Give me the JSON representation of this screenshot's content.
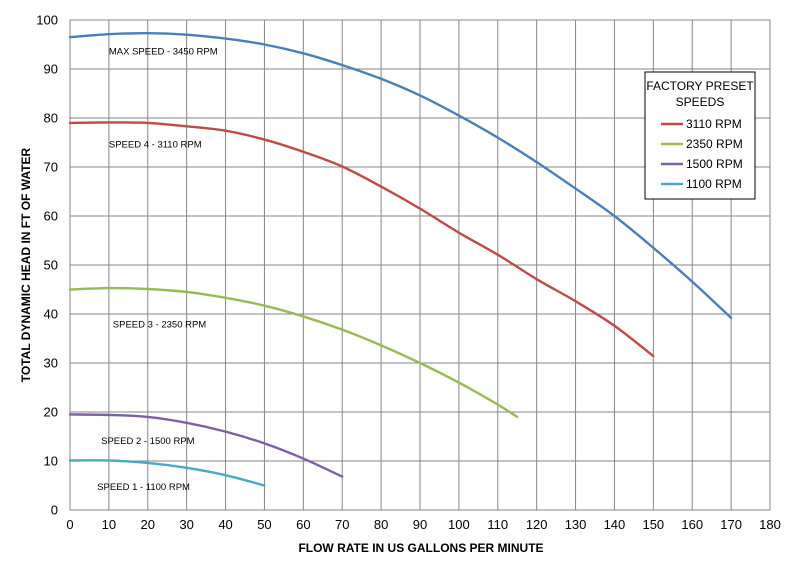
{
  "chart_data": {
    "type": "line",
    "xlabel": "FLOW RATE IN US GALLONS PER MINUTE",
    "ylabel": "TOTAL DYNAMIC HEAD IN FT OF WATER",
    "xlim": [
      0,
      180
    ],
    "ylim": [
      0,
      100
    ],
    "x_ticks": [
      0,
      10,
      20,
      30,
      40,
      50,
      60,
      70,
      80,
      90,
      100,
      110,
      120,
      130,
      140,
      150,
      160,
      170,
      180
    ],
    "y_ticks": [
      0,
      10,
      20,
      30,
      40,
      50,
      60,
      70,
      80,
      90,
      100
    ],
    "grid": true,
    "legend": {
      "title_lines": [
        "FACTORY PRESET",
        "SPEEDS"
      ],
      "placement": "top-right",
      "entries": [
        "3110 RPM",
        "2350 RPM",
        "1500 RPM",
        "1100 RPM"
      ]
    },
    "series": [
      {
        "label": "MAX SPEED - 3450 RPM",
        "color": "#4a7ebb",
        "points": [
          [
            0,
            96.5
          ],
          [
            10,
            97.1
          ],
          [
            20,
            97.3
          ],
          [
            30,
            97.0
          ],
          [
            40,
            96.2
          ],
          [
            50,
            95.0
          ],
          [
            60,
            93.2
          ],
          [
            70,
            90.8
          ],
          [
            80,
            88.0
          ],
          [
            90,
            84.6
          ],
          [
            100,
            80.5
          ],
          [
            110,
            76.0
          ],
          [
            120,
            71.0
          ],
          [
            130,
            65.6
          ],
          [
            140,
            60.0
          ],
          [
            150,
            53.5
          ],
          [
            160,
            46.6
          ],
          [
            170,
            39.2
          ]
        ]
      },
      {
        "label": "SPEED 4 - 3110 RPM",
        "legend": "3110 RPM",
        "color": "#be4b48",
        "points": [
          [
            0,
            79.0
          ],
          [
            10,
            79.1
          ],
          [
            20,
            79.0
          ],
          [
            30,
            78.3
          ],
          [
            40,
            77.4
          ],
          [
            50,
            75.6
          ],
          [
            60,
            73.1
          ],
          [
            70,
            70.1
          ],
          [
            80,
            66.0
          ],
          [
            90,
            61.5
          ],
          [
            100,
            56.6
          ],
          [
            110,
            52.1
          ],
          [
            120,
            47.1
          ],
          [
            130,
            42.6
          ],
          [
            140,
            37.6
          ],
          [
            150,
            31.4
          ]
        ]
      },
      {
        "label": "SPEED 3 - 2350 RPM",
        "legend": "2350 RPM",
        "color": "#98b954",
        "points": [
          [
            0,
            45.0
          ],
          [
            10,
            45.3
          ],
          [
            20,
            45.1
          ],
          [
            30,
            44.5
          ],
          [
            40,
            43.3
          ],
          [
            50,
            41.7
          ],
          [
            60,
            39.5
          ],
          [
            70,
            36.8
          ],
          [
            80,
            33.6
          ],
          [
            90,
            30.0
          ],
          [
            100,
            26.0
          ],
          [
            110,
            21.5
          ],
          [
            115,
            19.0
          ]
        ]
      },
      {
        "label": "SPEED 2 - 1500 RPM",
        "legend": "1500 RPM",
        "color": "#7d60a0",
        "points": [
          [
            0,
            19.5
          ],
          [
            10,
            19.4
          ],
          [
            20,
            19.0
          ],
          [
            30,
            17.8
          ],
          [
            40,
            16.0
          ],
          [
            50,
            13.6
          ],
          [
            60,
            10.5
          ],
          [
            70,
            6.8
          ]
        ]
      },
      {
        "label": "SPEED 1 - 1100 RPM",
        "legend": "1100 RPM",
        "color": "#46aac5",
        "points": [
          [
            0,
            10.1
          ],
          [
            10,
            10.1
          ],
          [
            20,
            9.6
          ],
          [
            30,
            8.6
          ],
          [
            40,
            7.1
          ],
          [
            50,
            5.0
          ]
        ]
      }
    ]
  }
}
